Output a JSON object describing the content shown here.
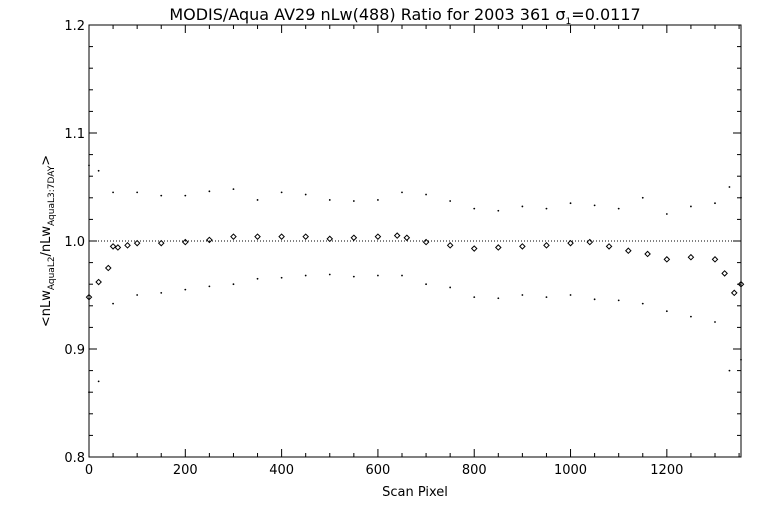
{
  "chart_data": {
    "type": "scatter",
    "title": "MODIS/Aqua AV29 nLw(488) Ratio for 2003 361 σ",
    "title_parts": {
      "main": "MODIS/Aqua AV29 nLw(488) Ratio for 2003 361 σ",
      "sigma_subscript": "1",
      "sigma_value": "=0.0117"
    },
    "xlabel": "Scan Pixel",
    "ylabel_parts": {
      "open": "<nLw",
      "sub1": "AquaL2",
      "mid": "/nLw",
      "sub2": "AquaL3:7DAY",
      "close": ">"
    },
    "xlim": [
      0,
      1354
    ],
    "ylim": [
      0.8,
      1.2
    ],
    "x_ticks": [
      0,
      200,
      400,
      600,
      800,
      1000,
      1200
    ],
    "x_tick_labels": [
      "0",
      "200",
      "400",
      "600",
      "800",
      "1000",
      "1200"
    ],
    "y_ticks": [
      0.8,
      0.9,
      1.0,
      1.1,
      1.2
    ],
    "y_tick_labels": [
      "0.8",
      "0.9",
      "1.0",
      "1.1",
      "1.2"
    ],
    "reference_line": 1.0,
    "grid": false,
    "series": [
      {
        "role": "mean",
        "marker": "diamond",
        "x": [
          0,
          20,
          40,
          50,
          60,
          80,
          100,
          150,
          200,
          250,
          300,
          350,
          400,
          450,
          500,
          550,
          600,
          640,
          660,
          700,
          750,
          800,
          850,
          900,
          950,
          1000,
          1040,
          1080,
          1120,
          1160,
          1200,
          1250,
          1300,
          1320,
          1340,
          1354
        ],
        "y": [
          0.948,
          0.962,
          0.975,
          0.995,
          0.994,
          0.996,
          0.998,
          0.998,
          0.999,
          1.001,
          1.004,
          1.004,
          1.004,
          1.004,
          1.002,
          1.003,
          1.004,
          1.005,
          1.003,
          0.999,
          0.996,
          0.993,
          0.994,
          0.995,
          0.996,
          0.998,
          0.999,
          0.995,
          0.991,
          0.988,
          0.983,
          0.985,
          0.983,
          0.97,
          0.952,
          0.96
        ]
      },
      {
        "role": "upper",
        "marker": "dot",
        "x": [
          0,
          20,
          50,
          100,
          150,
          200,
          250,
          300,
          350,
          400,
          450,
          500,
          550,
          600,
          650,
          700,
          750,
          800,
          850,
          900,
          950,
          1000,
          1050,
          1100,
          1150,
          1200,
          1250,
          1300,
          1330,
          1354
        ],
        "y": [
          1.07,
          1.065,
          1.045,
          1.045,
          1.042,
          1.042,
          1.046,
          1.048,
          1.038,
          1.045,
          1.043,
          1.038,
          1.037,
          1.038,
          1.045,
          1.043,
          1.037,
          1.03,
          1.028,
          1.032,
          1.03,
          1.035,
          1.033,
          1.03,
          1.04,
          1.025,
          1.032,
          1.035,
          1.05,
          1.04
        ]
      },
      {
        "role": "lower",
        "marker": "dot",
        "x": [
          0,
          20,
          50,
          100,
          150,
          200,
          250,
          300,
          350,
          400,
          450,
          500,
          550,
          600,
          650,
          700,
          750,
          800,
          850,
          900,
          950,
          1000,
          1050,
          1100,
          1150,
          1200,
          1250,
          1300,
          1330,
          1354
        ],
        "y": [
          0.86,
          0.87,
          0.942,
          0.95,
          0.952,
          0.955,
          0.958,
          0.96,
          0.965,
          0.966,
          0.968,
          0.969,
          0.967,
          0.968,
          0.968,
          0.96,
          0.957,
          0.948,
          0.947,
          0.95,
          0.948,
          0.95,
          0.946,
          0.945,
          0.942,
          0.935,
          0.93,
          0.925,
          0.88,
          0.89
        ]
      }
    ]
  }
}
